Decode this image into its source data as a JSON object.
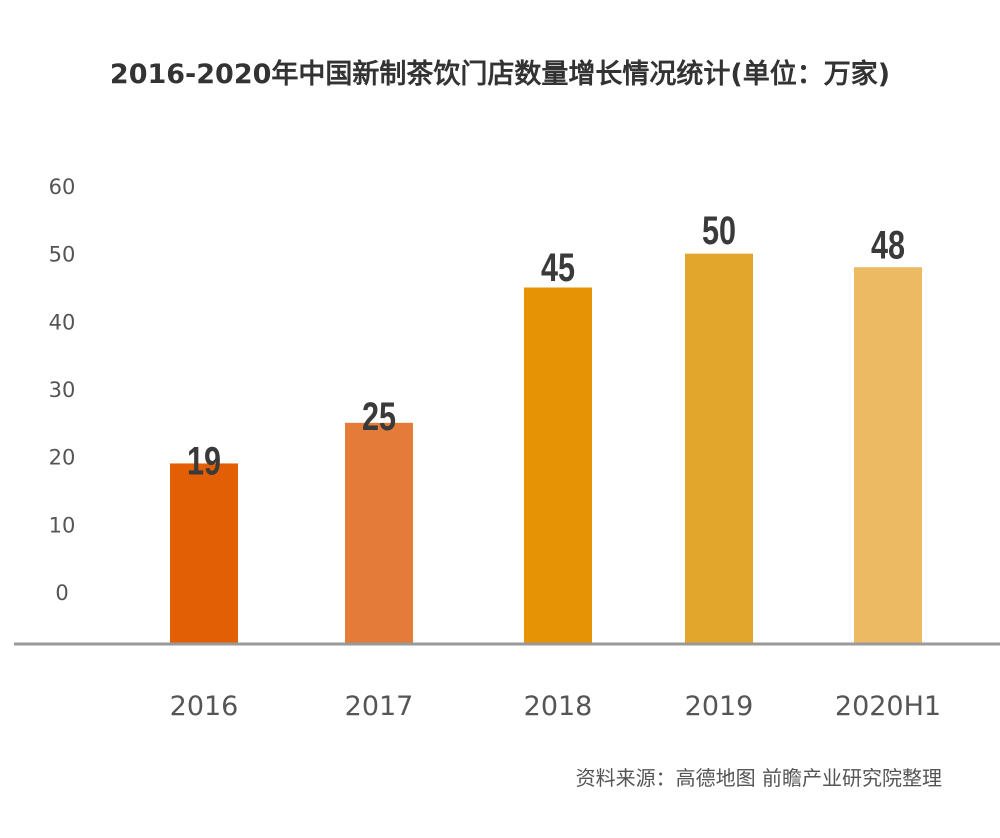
{
  "chart_data": {
    "type": "bar",
    "title": "2016-2020年中国新制茶饮门店数量增长情况统计(单位：万家)",
    "categories": [
      "2016",
      "2017",
      "2018",
      "2019",
      "2020H1"
    ],
    "values": [
      19,
      25,
      45,
      50,
      48
    ],
    "data_labels": [
      "19",
      "25",
      "45",
      "50",
      "48"
    ],
    "colors": [
      "#E35F05",
      "#E57B38",
      "#E69305",
      "#E3A62C",
      "#EBBA62"
    ],
    "ylim": [
      0,
      60
    ],
    "yticks": [
      "0",
      "10",
      "20",
      "30",
      "40",
      "50",
      "60"
    ],
    "grid": false,
    "legend": "none",
    "source": "资料来源：高德地图 前瞻产业研究院整理"
  }
}
